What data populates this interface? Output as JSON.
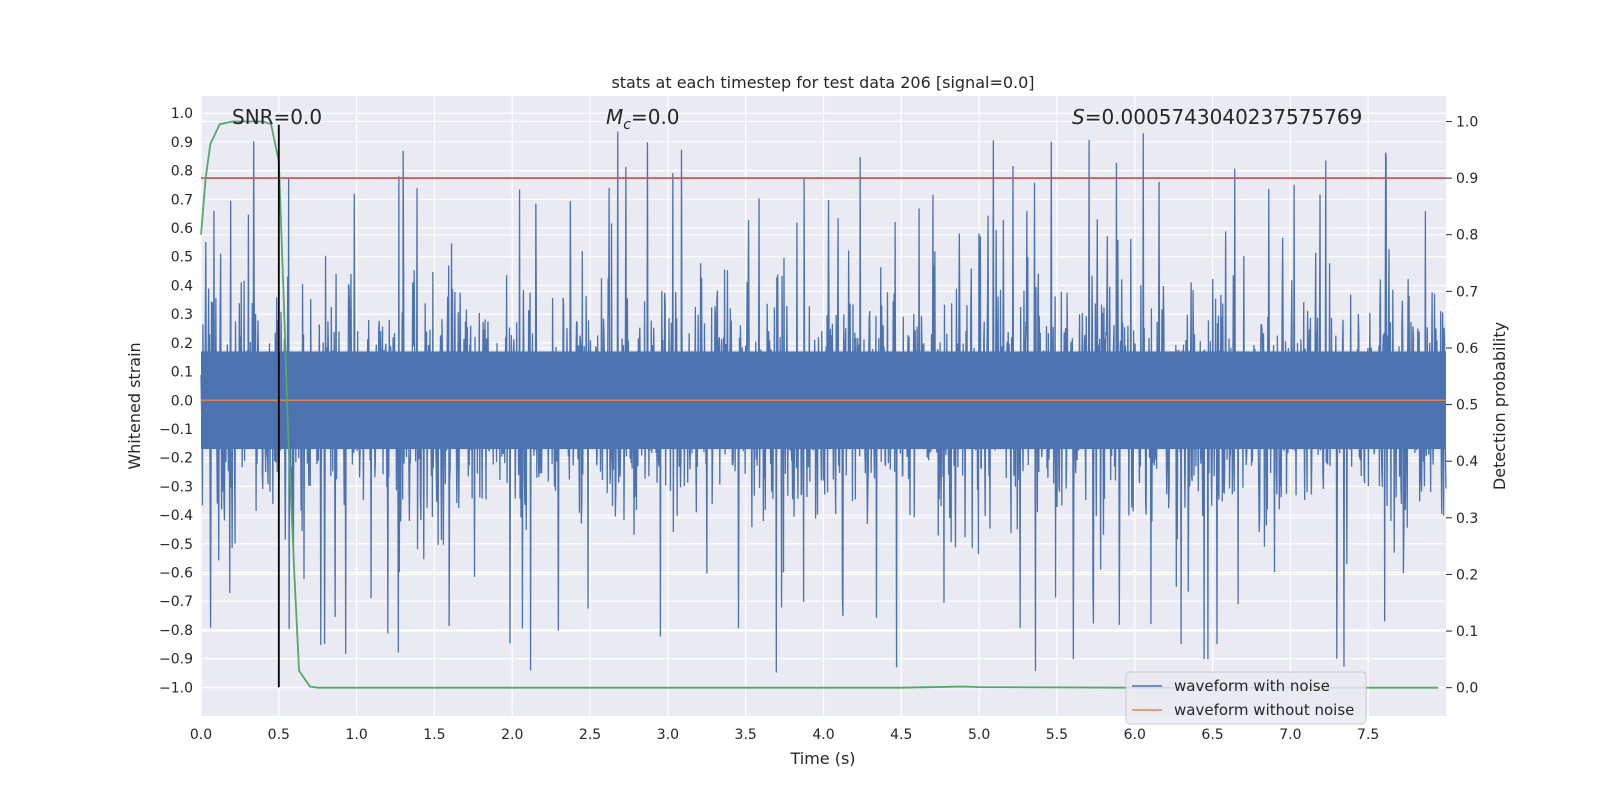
{
  "chart_data": {
    "type": "line",
    "title": "stats at each timestep for test data 206 [signal=0.0]",
    "xlabel": "Time (s)",
    "ylabel_left": "Whitened strain",
    "ylabel_right": "Detection probability",
    "xlim": [
      0.0,
      8.0
    ],
    "ylim_left": [
      -1.1,
      1.06
    ],
    "ylim_right": [
      -0.05,
      1.045
    ],
    "x_ticks": [
      0.0,
      0.5,
      1.0,
      1.5,
      2.0,
      2.5,
      3.0,
      3.5,
      4.0,
      4.5,
      5.0,
      5.5,
      6.0,
      6.5,
      7.0,
      7.5
    ],
    "x_tick_labels": [
      "0.0",
      "0.5",
      "1.0",
      "1.5",
      "2.0",
      "2.5",
      "3.0",
      "3.5",
      "4.0",
      "4.5",
      "5.0",
      "5.5",
      "6.0",
      "6.5",
      "7.0",
      "7.5"
    ],
    "y_ticks_left": [
      1.0,
      0.9,
      0.8,
      0.7,
      0.6,
      0.5,
      0.4,
      0.3,
      0.2,
      0.1,
      0.0,
      -0.1,
      -0.2,
      -0.3,
      -0.4,
      -0.5,
      -0.6,
      -0.7,
      -0.8,
      -0.9,
      -1.0
    ],
    "y_tick_labels_left": [
      "1.0",
      "0.9",
      "0.8",
      "0.7",
      "0.6",
      "0.5",
      "0.4",
      "0.3",
      "0.2",
      "0.1",
      "0.0",
      "−0.1",
      "−0.2",
      "−0.3",
      "−0.4",
      "−0.5",
      "−0.6",
      "−0.7",
      "−0.8",
      "−0.9",
      "−1.0"
    ],
    "y_ticks_right": [
      1.0,
      0.9,
      0.8,
      0.7,
      0.6,
      0.5,
      0.4,
      0.3,
      0.2,
      0.1,
      0.0
    ],
    "y_tick_labels_right": [
      "1.0",
      "0.9",
      "0.8",
      "0.7",
      "0.6",
      "0.5",
      "0.4",
      "0.3",
      "0.2",
      "0.1",
      "0.0"
    ],
    "annotations": {
      "snr": "SNR=0.0",
      "mc_symbol": "M",
      "mc_sub": "c",
      "mc_value": "=0.0",
      "s_symbol": "S",
      "s_value": "=0.0005743040237575769"
    },
    "threshold_right": 0.9,
    "vertical_line_x": 0.5,
    "vertical_line_range_left": [
      -1.0,
      0.96
    ],
    "series": [
      {
        "name": "waveform with noise",
        "axis": "left",
        "color": "#4c72b0",
        "description_values": "dense whitened noise, amplitude mostly within ±0.5 with spikes to about ±0.95",
        "amplitude_envelope": [
          -0.95,
          0.95
        ]
      },
      {
        "name": "waveform without noise",
        "axis": "left",
        "color": "#dd8452",
        "values_const": 0.0
      },
      {
        "name": "detection probability",
        "axis": "right",
        "color": "#55a868",
        "x": [
          0.0,
          0.03,
          0.06,
          0.12,
          0.2,
          0.3,
          0.4,
          0.45,
          0.5,
          0.53,
          0.56,
          0.6,
          0.63,
          0.7,
          0.75,
          1.0,
          2.0,
          3.0,
          4.0,
          4.5,
          4.9,
          5.0,
          6.0,
          7.0,
          7.95
        ],
        "y": [
          0.8,
          0.9,
          0.96,
          0.995,
          1.0,
          1.0,
          1.0,
          0.995,
          0.93,
          0.7,
          0.45,
          0.2,
          0.03,
          0.002,
          0.0,
          0.0,
          0.0,
          0.0,
          0.0,
          0.0,
          0.002,
          0.001,
          0.0,
          0.0,
          0.0
        ]
      }
    ],
    "threshold_color": "#c44e52",
    "vline_color": "#000000",
    "legend": {
      "placement": "lower-right",
      "entries": [
        "waveform with noise",
        "waveform without noise"
      ]
    }
  }
}
